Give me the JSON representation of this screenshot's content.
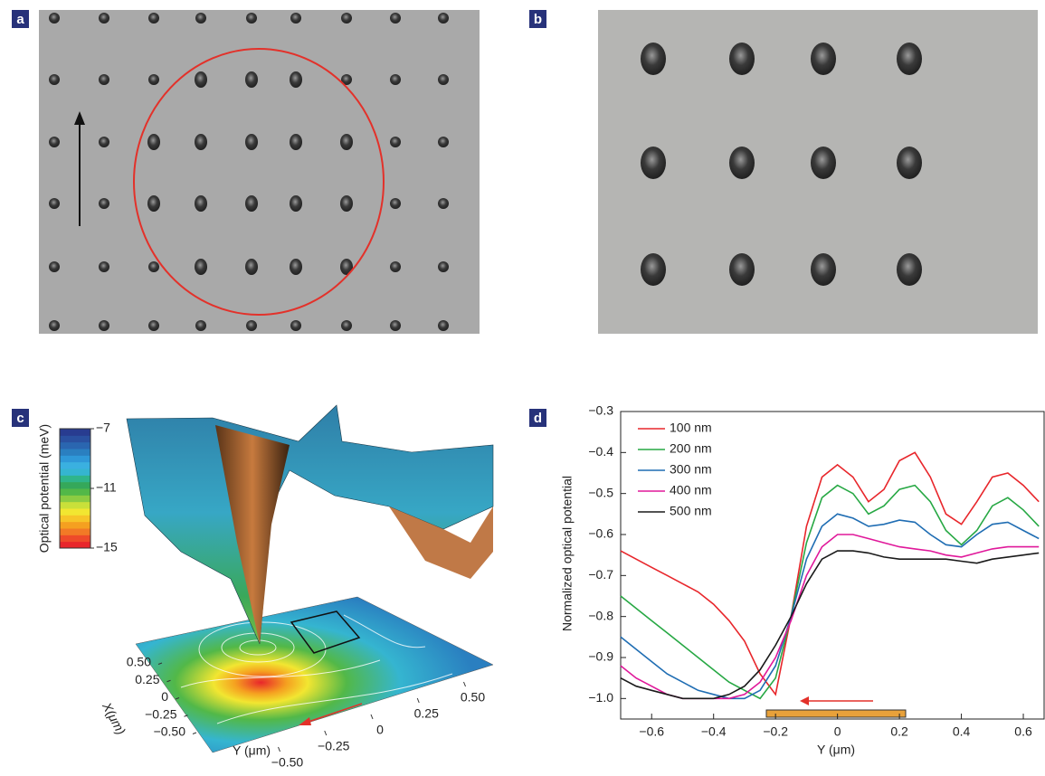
{
  "panel_labels": [
    "a",
    "b",
    "c",
    "d"
  ],
  "panel_c": {
    "colorbar_label": "Optical potential (meV)",
    "clim": [
      -15,
      -7
    ],
    "colorbar_ticks": [
      {
        "value": -7,
        "label": "−7"
      },
      {
        "value": -11,
        "label": "−11"
      },
      {
        "value": -15,
        "label": "−15"
      }
    ],
    "x_label": "X(μm)",
    "x_ticks": [
      {
        "value": 0.5,
        "label": "0.50"
      },
      {
        "value": 0.25,
        "label": "0.25"
      },
      0,
      {
        "value": -0.25,
        "label": "−0.25"
      },
      {
        "value": -0.5,
        "label": "−0.50"
      }
    ],
    "y_label": "Y (μm)",
    "y_ticks": [
      {
        "value": -0.5,
        "label": "−0.50"
      },
      {
        "value": -0.25,
        "label": "−0.25"
      },
      0,
      {
        "value": 0.25,
        "label": "0.25"
      },
      {
        "value": 0.5,
        "label": "0.50"
      }
    ]
  },
  "chart_data": {
    "type": "line",
    "xlabel": "Y (μm)",
    "ylabel": "Normalized optical potential",
    "xlim": [
      -0.7,
      0.67
    ],
    "ylim": [
      -1.05,
      -0.3
    ],
    "xticks": [
      {
        "value": -0.6,
        "label": "−0.6"
      },
      {
        "value": -0.4,
        "label": "−0.4"
      },
      {
        "value": -0.2,
        "label": "−0.2"
      },
      0,
      0.2,
      0.4,
      0.6
    ],
    "yticks": [
      {
        "value": -0.3,
        "label": "−0.3"
      },
      {
        "value": -0.4,
        "label": "−0.4"
      },
      {
        "value": -0.5,
        "label": "−0.5"
      },
      {
        "value": -0.6,
        "label": "−0.6"
      },
      {
        "value": -0.7,
        "label": "−0.7"
      },
      {
        "value": -0.8,
        "label": "−0.8"
      },
      {
        "value": -0.9,
        "label": "−0.9"
      },
      {
        "value": -1.0,
        "label": "−1.0"
      }
    ],
    "legend": "upper left",
    "x": [
      -0.7,
      -0.65,
      -0.6,
      -0.55,
      -0.5,
      -0.45,
      -0.4,
      -0.35,
      -0.3,
      -0.25,
      -0.2,
      -0.15,
      -0.1,
      -0.05,
      0,
      0.05,
      0.1,
      0.15,
      0.2,
      0.25,
      0.3,
      0.35,
      0.4,
      0.45,
      0.5,
      0.55,
      0.6,
      0.65
    ],
    "series": [
      {
        "name": "100 nm",
        "color": "#e8262b",
        "values": [
          -0.64,
          -0.66,
          -0.68,
          -0.7,
          -0.72,
          -0.74,
          -0.77,
          -0.81,
          -0.86,
          -0.94,
          -0.99,
          -0.8,
          -0.58,
          -0.46,
          -0.43,
          -0.46,
          -0.52,
          -0.49,
          -0.42,
          -0.4,
          -0.46,
          -0.55,
          -0.575,
          -0.52,
          -0.46,
          -0.45,
          -0.48,
          -0.52
        ]
      },
      {
        "name": "200 nm",
        "color": "#27a844",
        "values": [
          -0.75,
          -0.78,
          -0.81,
          -0.84,
          -0.87,
          -0.9,
          -0.93,
          -0.96,
          -0.98,
          -1.0,
          -0.95,
          -0.8,
          -0.62,
          -0.51,
          -0.48,
          -0.5,
          -0.55,
          -0.53,
          -0.49,
          -0.48,
          -0.52,
          -0.59,
          -0.625,
          -0.59,
          -0.53,
          -0.51,
          -0.54,
          -0.58
        ]
      },
      {
        "name": "300 nm",
        "color": "#1f6db3",
        "values": [
          -0.85,
          -0.88,
          -0.91,
          -0.94,
          -0.96,
          -0.98,
          -0.99,
          -1.0,
          -1.0,
          -0.98,
          -0.92,
          -0.8,
          -0.66,
          -0.58,
          -0.55,
          -0.56,
          -0.58,
          -0.575,
          -0.565,
          -0.57,
          -0.6,
          -0.625,
          -0.63,
          -0.6,
          -0.575,
          -0.57,
          -0.59,
          -0.61
        ]
      },
      {
        "name": "400 nm",
        "color": "#e0189a",
        "values": [
          -0.92,
          -0.95,
          -0.97,
          -0.99,
          -1.0,
          -1.0,
          -1.0,
          -1.0,
          -0.99,
          -0.96,
          -0.9,
          -0.81,
          -0.7,
          -0.63,
          -0.6,
          -0.6,
          -0.61,
          -0.62,
          -0.63,
          -0.635,
          -0.64,
          -0.65,
          -0.655,
          -0.645,
          -0.635,
          -0.63,
          -0.63,
          -0.63
        ]
      },
      {
        "name": "500 nm",
        "color": "#1a1a1a",
        "values": [
          -0.95,
          -0.97,
          -0.98,
          -0.99,
          -1.0,
          -1.0,
          -1.0,
          -0.99,
          -0.97,
          -0.93,
          -0.87,
          -0.8,
          -0.72,
          -0.66,
          -0.64,
          -0.64,
          -0.645,
          -0.655,
          -0.66,
          -0.66,
          -0.66,
          -0.66,
          -0.665,
          -0.67,
          -0.66,
          -0.655,
          -0.65,
          -0.645
        ]
      }
    ]
  }
}
